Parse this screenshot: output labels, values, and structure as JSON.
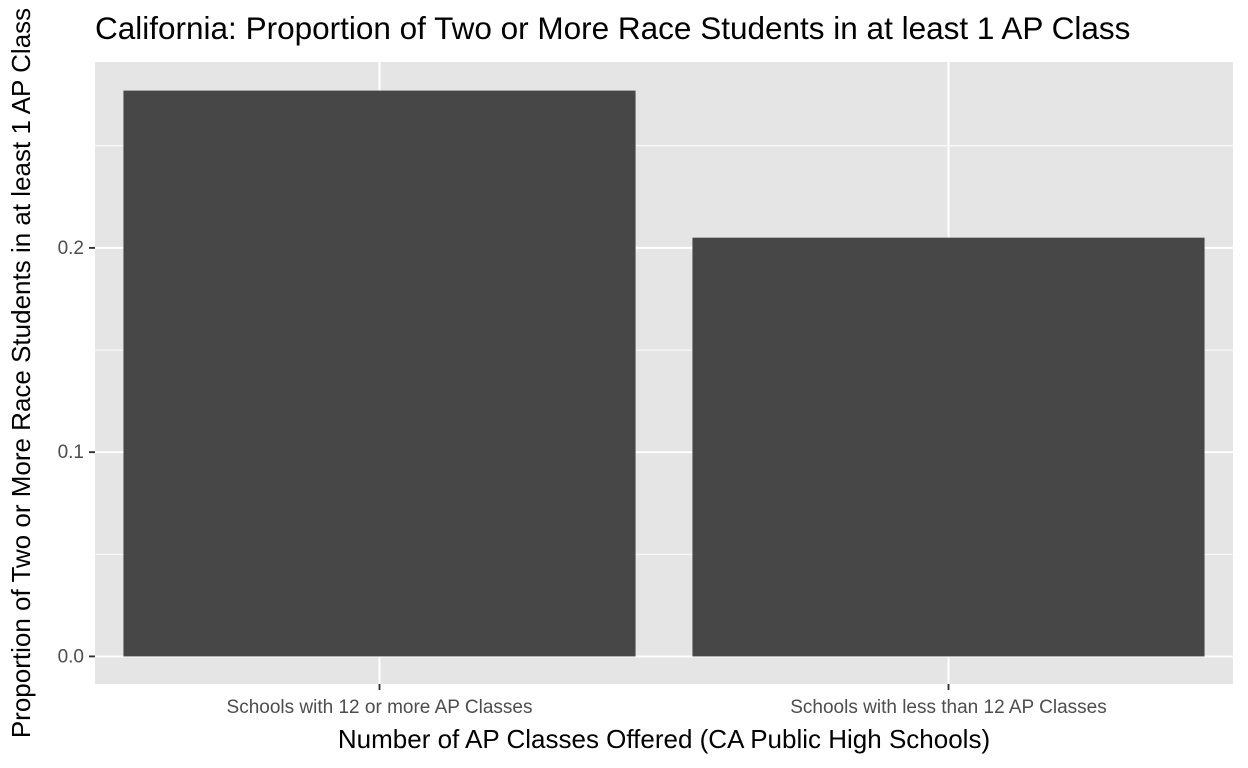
{
  "chart_data": {
    "type": "bar",
    "title": "California: Proportion of Two or More Race Students in at least 1 AP Class",
    "xlabel": "Number of AP Classes Offered (CA Public High Schools)",
    "ylabel": "Proportion of Two or More Race Students in at least 1 AP Class",
    "categories": [
      "Schools with 12 or more AP Classes",
      "Schools with less than 12 AP Classes"
    ],
    "values": [
      0.277,
      0.205
    ],
    "ylim": [
      -0.0135,
      0.291
    ],
    "y_ticks": [
      0.0,
      0.1,
      0.2
    ],
    "y_tick_labels": [
      "0.0",
      "0.1",
      "0.2"
    ],
    "grid": true,
    "legend": "none",
    "colors": {
      "bar": "#474747",
      "panel_background": "#e5e5e5",
      "grid": "#ffffff",
      "axis_text": "#4d4d4d",
      "title": "#000000"
    }
  }
}
